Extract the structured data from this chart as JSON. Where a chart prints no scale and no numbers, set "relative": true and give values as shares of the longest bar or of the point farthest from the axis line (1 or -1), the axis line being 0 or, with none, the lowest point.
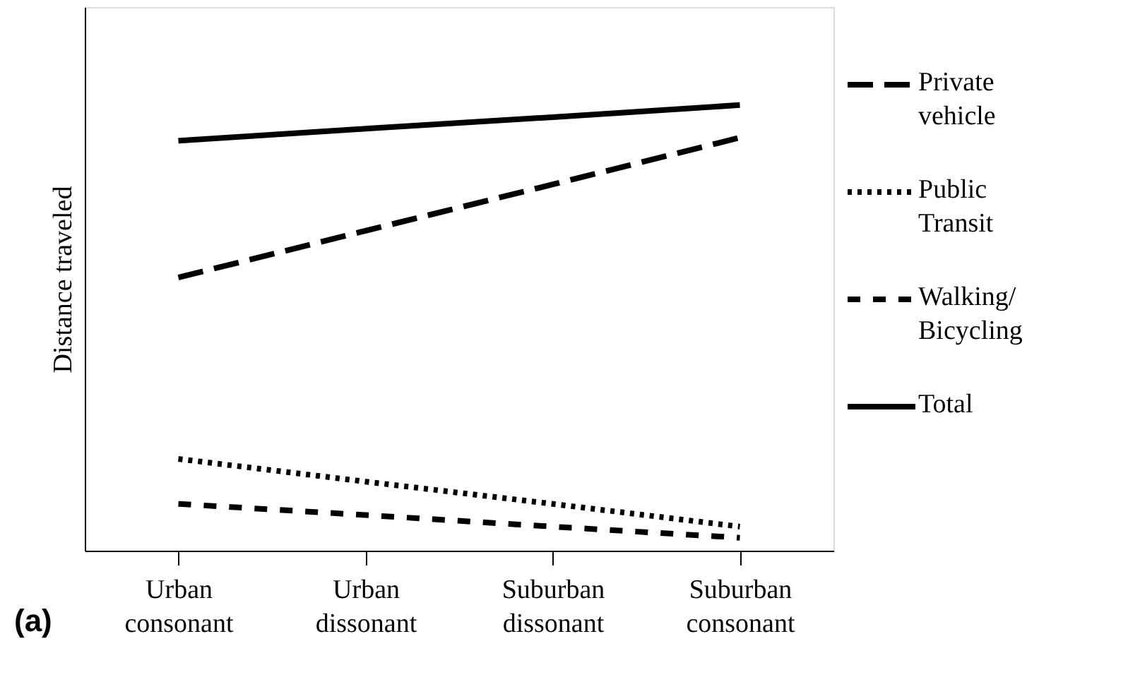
{
  "chart_data": {
    "type": "line",
    "relative": true,
    "ylabel": "Distance traveled",
    "categories": [
      "Urban consonant",
      "Urban dissonant",
      "Suburban dissonant",
      "Suburban consonant"
    ],
    "series": [
      {
        "name": "Private vehicle",
        "color": "#000000",
        "line_style": "dashed",
        "values": [
          0.613,
          0.718,
          0.822,
          0.927
        ]
      },
      {
        "name": "Public Transit",
        "color": "#000000",
        "line_style": "dotted",
        "values": [
          0.206,
          0.155,
          0.105,
          0.054
        ]
      },
      {
        "name": "Walking/ Bicycling",
        "color": "#000000",
        "line_style": "dashed",
        "values": [
          0.105,
          0.08,
          0.054,
          0.029
        ]
      },
      {
        "name": "Total",
        "color": "#000000",
        "line_style": "solid",
        "values": [
          0.92,
          0.947,
          0.973,
          1.0
        ]
      }
    ],
    "annotations": [
      "(a)"
    ],
    "grid": false,
    "legend": "right",
    "marker": "none"
  }
}
